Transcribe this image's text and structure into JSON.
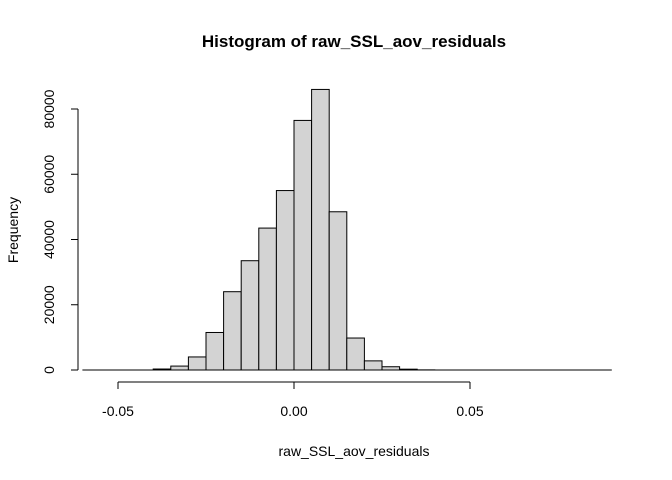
{
  "chart_data": {
    "type": "bar",
    "title": "Histogram of raw_SSL_aov_residuals",
    "xlabel": "raw_SSL_aov_residuals",
    "ylabel": "Frequency",
    "bin_width": 0.005,
    "bins": [
      {
        "x0": -0.04,
        "x1": -0.035,
        "count": 300
      },
      {
        "x0": -0.035,
        "x1": -0.03,
        "count": 1200
      },
      {
        "x0": -0.03,
        "x1": -0.025,
        "count": 4000
      },
      {
        "x0": -0.025,
        "x1": -0.02,
        "count": 11500
      },
      {
        "x0": -0.02,
        "x1": -0.015,
        "count": 24000
      },
      {
        "x0": -0.015,
        "x1": -0.01,
        "count": 33500
      },
      {
        "x0": -0.01,
        "x1": -0.005,
        "count": 43500
      },
      {
        "x0": -0.005,
        "x1": 0.0,
        "count": 55000
      },
      {
        "x0": 0.0,
        "x1": 0.005,
        "count": 76500
      },
      {
        "x0": 0.005,
        "x1": 0.01,
        "count": 86000
      },
      {
        "x0": 0.01,
        "x1": 0.015,
        "count": 48500
      },
      {
        "x0": 0.015,
        "x1": 0.02,
        "count": 9800
      },
      {
        "x0": 0.02,
        "x1": 0.025,
        "count": 2800
      },
      {
        "x0": 0.025,
        "x1": 0.03,
        "count": 1000
      },
      {
        "x0": 0.03,
        "x1": 0.035,
        "count": 250
      },
      {
        "x0": 0.035,
        "x1": 0.04,
        "count": 40
      }
    ],
    "x_ticks": [
      {
        "value": -0.05,
        "label": "-0.05"
      },
      {
        "value": 0.0,
        "label": "0.00"
      },
      {
        "value": 0.05,
        "label": "0.05"
      }
    ],
    "y_ticks": [
      {
        "value": 0,
        "label": "0"
      },
      {
        "value": 20000,
        "label": "20000"
      },
      {
        "value": 40000,
        "label": "40000"
      },
      {
        "value": 60000,
        "label": "60000"
      },
      {
        "value": 80000,
        "label": "80000"
      }
    ],
    "xlim": [
      -0.055,
      0.09
    ],
    "ylim": [
      0,
      86000
    ],
    "grid": false,
    "bar_color": "#d3d3d3"
  }
}
